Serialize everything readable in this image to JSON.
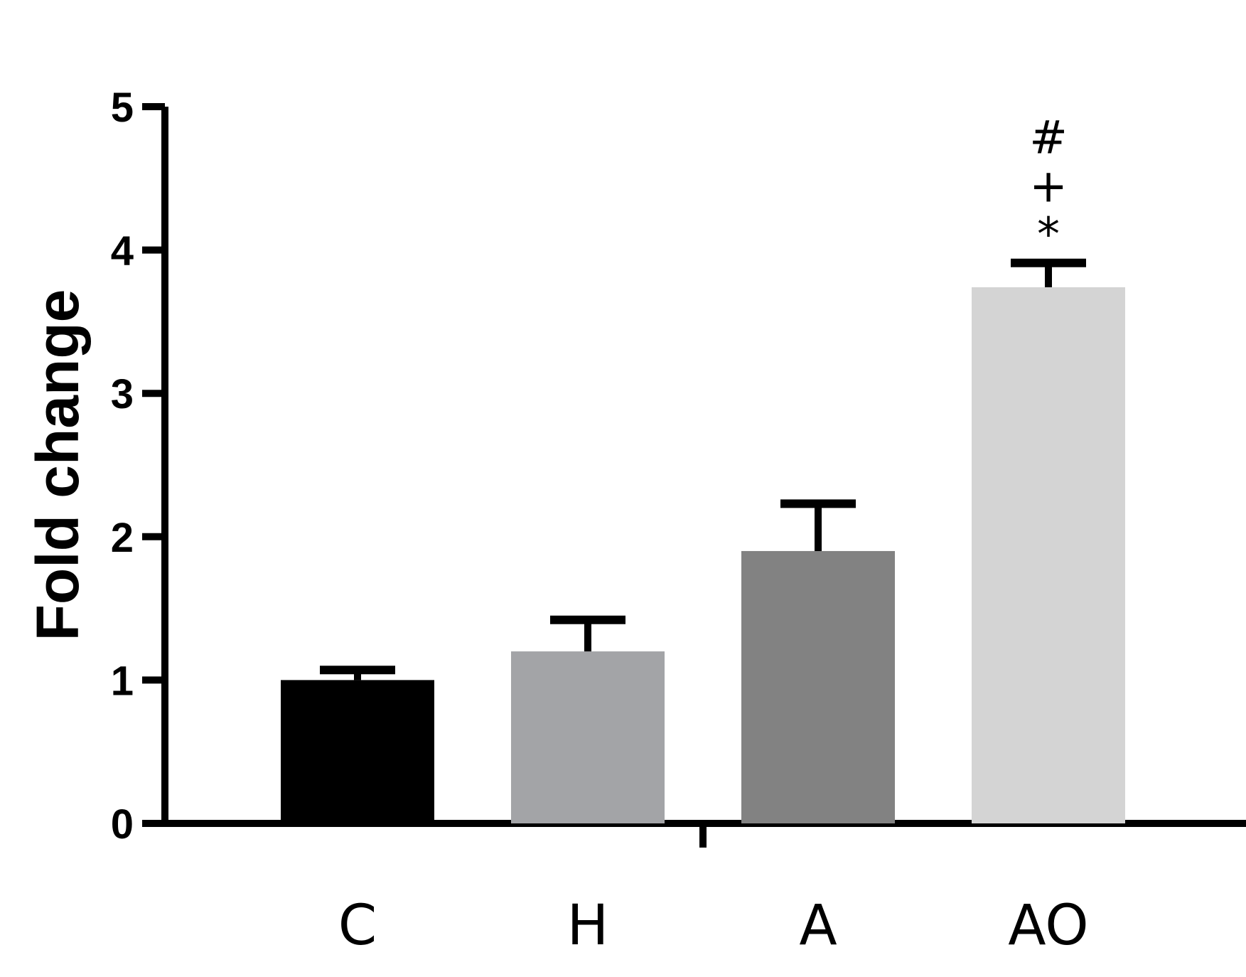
{
  "chart_data": {
    "type": "bar",
    "categories": [
      "C",
      "H",
      "A",
      "AO"
    ],
    "values": [
      1.0,
      1.2,
      1.9,
      3.74
    ],
    "errors": [
      0.07,
      0.22,
      0.33,
      0.17
    ],
    "significance": [
      [],
      [],
      [],
      [
        "*",
        "+",
        "#"
      ]
    ],
    "colors": [
      "#000000",
      "#a3a4a7",
      "#828282",
      "#d4d4d4"
    ],
    "ylabel": "Fold change",
    "xlabel": "",
    "ylim": [
      0,
      5
    ],
    "yticks": [
      0,
      1,
      2,
      3,
      4,
      5
    ],
    "ytick_labels": [
      "0",
      "1",
      "2",
      "3",
      "4",
      "5"
    ],
    "grid": false,
    "legend": "none"
  }
}
